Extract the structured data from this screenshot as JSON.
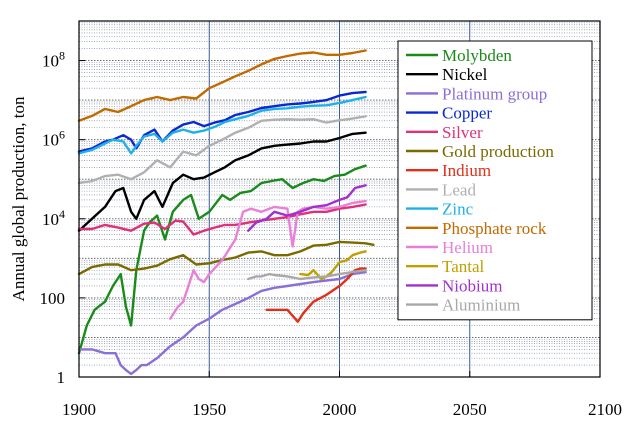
{
  "chart_data": {
    "type": "line",
    "title": "",
    "xlabel": "",
    "ylabel": "Annual global production, ton",
    "xlim": [
      1900,
      2100
    ],
    "ylim": [
      1,
      1000000000
    ],
    "yscale": "log",
    "x_ticks": [
      {
        "value": 1900,
        "label": "1900"
      },
      {
        "value": 1950,
        "label": "1950"
      },
      {
        "value": 2000,
        "label": "2000"
      },
      {
        "value": 2050,
        "label": "2050"
      },
      {
        "value": 2100,
        "label": "2100"
      }
    ],
    "y_ticks": [
      {
        "value": 1,
        "base": "1",
        "exp": ""
      },
      {
        "value": 100,
        "base": "100",
        "exp": ""
      },
      {
        "value": 10000,
        "base": "10",
        "exp": "4"
      },
      {
        "value": 1000000,
        "base": "10",
        "exp": "6"
      },
      {
        "value": 100000000,
        "base": "10",
        "exp": "8"
      }
    ],
    "grid": true,
    "legend_position": "top-right",
    "series": [
      {
        "name": "Molybden",
        "color": "#1a8a1a",
        "x": [
          1900,
          1903,
          1906,
          1910,
          1913,
          1916,
          1918,
          1920,
          1922,
          1925,
          1927,
          1930,
          1933,
          1936,
          1940,
          1943,
          1946,
          1950,
          1955,
          1958,
          1962,
          1966,
          1970,
          1974,
          1978,
          1982,
          1986,
          1990,
          1994,
          1998,
          2002,
          2006,
          2010
        ],
        "y": [
          4,
          20,
          50,
          80,
          200,
          400,
          60,
          20,
          500,
          5000,
          8000,
          12000,
          3000,
          15000,
          30000,
          40000,
          10000,
          15000,
          40000,
          30000,
          45000,
          50000,
          80000,
          90000,
          100000,
          60000,
          80000,
          100000,
          90000,
          120000,
          130000,
          180000,
          220000
        ]
      },
      {
        "name": "Nickel",
        "color": "#000000",
        "x": [
          1900,
          1905,
          1910,
          1914,
          1917,
          1920,
          1922,
          1925,
          1929,
          1932,
          1936,
          1940,
          1944,
          1948,
          1952,
          1956,
          1960,
          1965,
          1970,
          1975,
          1980,
          1985,
          1990,
          1995,
          2000,
          2005,
          2010
        ],
        "y": [
          5000,
          10000,
          20000,
          50000,
          60000,
          15000,
          10000,
          30000,
          50000,
          20000,
          80000,
          130000,
          100000,
          110000,
          150000,
          200000,
          300000,
          400000,
          600000,
          700000,
          750000,
          800000,
          900000,
          900000,
          1100000,
          1400000,
          1500000
        ]
      },
      {
        "name": "Platinum group",
        "color": "#8a6fd6",
        "x": [
          1900,
          1905,
          1910,
          1914,
          1916,
          1918,
          1920,
          1922,
          1924,
          1926,
          1930,
          1935,
          1940,
          1945,
          1950,
          1955,
          1960,
          1965,
          1970,
          1975,
          1980,
          1990,
          2000,
          2005,
          2010
        ],
        "y": [
          5,
          5,
          4,
          4,
          2,
          1.5,
          1.2,
          1.5,
          2,
          2,
          3,
          6,
          10,
          20,
          30,
          50,
          70,
          100,
          150,
          180,
          200,
          250,
          300,
          400,
          450
        ]
      },
      {
        "name": "Copper",
        "color": "#0a2ad0",
        "x": [
          1900,
          1905,
          1910,
          1913,
          1917,
          1920,
          1922,
          1925,
          1929,
          1932,
          1936,
          1940,
          1944,
          1948,
          1952,
          1956,
          1960,
          1965,
          1970,
          1975,
          1980,
          1985,
          1990,
          1995,
          2000,
          2005,
          2010
        ],
        "y": [
          500000,
          600000,
          900000,
          1000000,
          1300000,
          1000000,
          600000,
          1300000,
          1800000,
          900000,
          1700000,
          2400000,
          2800000,
          2200000,
          2700000,
          3100000,
          4200000,
          5000000,
          6300000,
          7000000,
          7800000,
          8200000,
          9000000,
          10000000,
          13000000,
          15000000,
          16000000
        ]
      },
      {
        "name": "Silver",
        "color": "#e0307a",
        "x": [
          1900,
          1905,
          1910,
          1915,
          1920,
          1925,
          1929,
          1933,
          1937,
          1940,
          1944,
          1948,
          1952,
          1956,
          1960,
          1965,
          1970,
          1975,
          1980,
          1985,
          1990,
          1995,
          2000,
          2005,
          2010
        ],
        "y": [
          5500,
          5500,
          7000,
          6000,
          5000,
          7500,
          8000,
          5500,
          9000,
          8500,
          4000,
          5000,
          6000,
          7000,
          7000,
          8000,
          9000,
          10000,
          11000,
          13000,
          15000,
          15000,
          18000,
          20000,
          23000
        ]
      },
      {
        "name": "Gold production",
        "color": "#7a6a00",
        "x": [
          1900,
          1905,
          1910,
          1915,
          1920,
          1925,
          1930,
          1935,
          1940,
          1945,
          1950,
          1955,
          1960,
          1965,
          1970,
          1975,
          1980,
          1985,
          1990,
          1995,
          2000,
          2005,
          2010,
          2013
        ],
        "y": [
          400,
          600,
          700,
          700,
          500,
          550,
          650,
          950,
          1200,
          700,
          750,
          900,
          1050,
          1400,
          1500,
          1200,
          1200,
          1500,
          2100,
          2200,
          2600,
          2500,
          2400,
          2200
        ]
      },
      {
        "name": "Indium",
        "color": "#e0301a",
        "x": [
          1972,
          1975,
          1980,
          1984,
          1986,
          1990,
          1995,
          2000,
          2003,
          2006,
          2008,
          2010
        ],
        "y": [
          50,
          50,
          50,
          25,
          40,
          80,
          120,
          200,
          300,
          500,
          550,
          550
        ]
      },
      {
        "name": "Lead",
        "color": "#b0b0b0",
        "x": [
          1900,
          1905,
          1910,
          1915,
          1920,
          1925,
          1930,
          1935,
          1940,
          1945,
          1950,
          1955,
          1960,
          1965,
          1970,
          1975,
          1980,
          1985,
          1990,
          1995,
          2000,
          2005,
          2010
        ],
        "y": [
          80000,
          90000,
          120000,
          130000,
          100000,
          150000,
          300000,
          200000,
          500000,
          400000,
          700000,
          1000000,
          1500000,
          2000000,
          3000000,
          3200000,
          3300000,
          3200000,
          3300000,
          2700000,
          3100000,
          3400000,
          3900000
        ]
      },
      {
        "name": "Zinc",
        "color": "#20b0e8",
        "x": [
          1900,
          1905,
          1910,
          1913,
          1917,
          1920,
          1922,
          1925,
          1929,
          1932,
          1936,
          1940,
          1944,
          1948,
          1952,
          1956,
          1960,
          1965,
          1970,
          1975,
          1980,
          1985,
          1990,
          1995,
          2000,
          2005,
          2010
        ],
        "y": [
          450000,
          550000,
          800000,
          1000000,
          900000,
          450000,
          700000,
          1200000,
          1400000,
          900000,
          1500000,
          1800000,
          1500000,
          1700000,
          2100000,
          2800000,
          3300000,
          4000000,
          5400000,
          6000000,
          6200000,
          6800000,
          7200000,
          7400000,
          8500000,
          10000000,
          12000000
        ]
      },
      {
        "name": "Phosphate rock",
        "color": "#c06a00",
        "x": [
          1900,
          1905,
          1910,
          1915,
          1920,
          1925,
          1930,
          1935,
          1940,
          1945,
          1950,
          1955,
          1960,
          1965,
          1970,
          1975,
          1980,
          1985,
          1990,
          1995,
          2000,
          2005,
          2010
        ],
        "y": [
          3000000,
          4000000,
          6000000,
          5000000,
          7000000,
          10000000,
          12000000,
          10000000,
          12000000,
          11000000,
          20000000,
          28000000,
          40000000,
          55000000,
          80000000,
          110000000,
          130000000,
          150000000,
          160000000,
          140000000,
          140000000,
          155000000,
          180000000
        ]
      },
      {
        "name": "Helium",
        "color": "#e880d8",
        "x": [
          1935,
          1938,
          1940,
          1942,
          1944,
          1946,
          1948,
          1950,
          1955,
          1960,
          1963,
          1966,
          1970,
          1975,
          1980,
          1982,
          1984,
          1986,
          1990,
          1995,
          2000,
          2005,
          2010
        ],
        "y": [
          30,
          60,
          80,
          200,
          500,
          300,
          250,
          400,
          900,
          3000,
          15000,
          18000,
          15000,
          20000,
          18000,
          2000,
          15000,
          18000,
          20000,
          18000,
          20000,
          25000,
          28000
        ]
      },
      {
        "name": "Tantal",
        "color": "#c0a000",
        "x": [
          1985,
          1988,
          1990,
          1993,
          1995,
          1997,
          2000,
          2003,
          2005,
          2008,
          2010
        ],
        "y": [
          400,
          380,
          500,
          300,
          350,
          450,
          800,
          900,
          1200,
          1400,
          1500
        ]
      },
      {
        "name": "Niobium",
        "color": "#a030d0",
        "x": [
          1965,
          1968,
          1972,
          1975,
          1980,
          1985,
          1990,
          1995,
          2000,
          2003,
          2006,
          2010
        ],
        "y": [
          5000,
          8000,
          10000,
          15000,
          12000,
          15000,
          20000,
          22000,
          30000,
          35000,
          60000,
          70000
        ]
      },
      {
        "name": "Aluminium",
        "color": "#a8a8a8",
        "x": [
          1965,
          1968,
          1970,
          1973,
          1975,
          1980,
          1985,
          1990,
          1995,
          2000,
          2005,
          2010
        ],
        "y": [
          300,
          350,
          350,
          400,
          380,
          350,
          300,
          330,
          350,
          400,
          450,
          500
        ]
      }
    ]
  }
}
